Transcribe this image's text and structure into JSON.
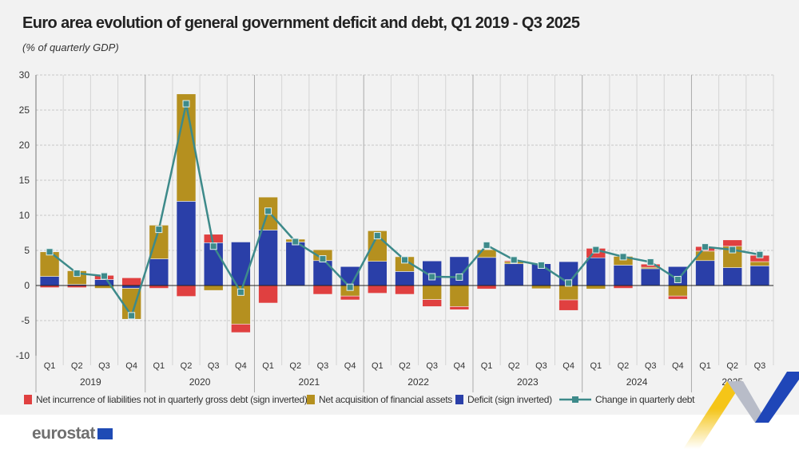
{
  "title": "Euro area evolution of general government deficit and debt, Q1 2019 - Q3 2025",
  "subtitle": "(% of quarterly GDP)",
  "chart_data": {
    "type": "bar",
    "stacked": true,
    "ylim": [
      -10,
      30
    ],
    "yticks": [
      -10,
      -5,
      0,
      5,
      10,
      15,
      20,
      25,
      30
    ],
    "grid": true,
    "legend_position": "bottom",
    "years": [
      "2019",
      "2020",
      "2021",
      "2022",
      "2023",
      "2024",
      "2025"
    ],
    "categories": [
      "Q1",
      "Q2",
      "Q3",
      "Q4",
      "Q1",
      "Q2",
      "Q3",
      "Q4",
      "Q1",
      "Q2",
      "Q3",
      "Q4",
      "Q1",
      "Q2",
      "Q3",
      "Q4",
      "Q1",
      "Q2",
      "Q3",
      "Q4",
      "Q1",
      "Q2",
      "Q3",
      "Q4",
      "Q1",
      "Q2",
      "Q3"
    ],
    "series": [
      {
        "name": "Deficit (sign inverted)",
        "color": "#2a3fa8",
        "type": "bar",
        "values": [
          1.3,
          0.15,
          0.85,
          -0.4,
          3.8,
          12.0,
          6.1,
          6.2,
          7.9,
          6.2,
          3.55,
          2.7,
          3.45,
          2.0,
          3.5,
          4.1,
          4.0,
          3.1,
          3.1,
          3.4,
          3.95,
          2.9,
          2.4,
          2.7,
          3.55,
          2.55,
          2.8
        ]
      },
      {
        "name": "Net acquisition of financial assets",
        "color": "#b5901f",
        "type": "bar",
        "values": [
          3.5,
          1.95,
          -0.4,
          -4.4,
          4.8,
          15.3,
          -0.7,
          -5.5,
          4.7,
          0.4,
          1.55,
          -1.5,
          4.35,
          2.1,
          -2.0,
          -3.0,
          1.1,
          0.3,
          -0.45,
          -2.05,
          -0.5,
          1.25,
          0.2,
          -1.5,
          1.35,
          3.05,
          0.6
        ]
      },
      {
        "name": "Net incurrence of liabilities not in quarterly gross debt (sign inverted)",
        "color": "#e04040",
        "type": "bar",
        "values": [
          -0.3,
          -0.3,
          0.6,
          1.1,
          -0.4,
          -1.55,
          1.2,
          -1.2,
          -2.5,
          0.0,
          -1.25,
          -0.55,
          -1.1,
          -1.25,
          -1.0,
          -0.45,
          -0.5,
          0.15,
          0.0,
          -1.5,
          1.35,
          -0.4,
          0.45,
          -0.45,
          0.65,
          0.9,
          0.9
        ]
      },
      {
        "name": "Change in quarterly debt",
        "color": "#3d8a8a",
        "type": "line",
        "values": [
          4.8,
          1.75,
          1.35,
          -4.3,
          8.0,
          25.9,
          5.6,
          -0.95,
          10.6,
          6.25,
          3.8,
          -0.25,
          7.1,
          3.65,
          1.25,
          1.2,
          5.75,
          3.65,
          2.9,
          0.35,
          5.1,
          4.1,
          3.35,
          0.85,
          5.5,
          5.1,
          4.4
        ]
      }
    ]
  },
  "legend": [
    "Net incurrence of liabilities not in quarterly gross debt (sign inverted)",
    "Net acquisition of financial assets",
    "Deficit (sign inverted)",
    "Change in quarterly debt"
  ],
  "logo": "eurostat"
}
